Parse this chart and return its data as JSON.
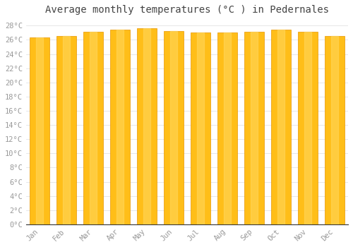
{
  "title": "Average monthly temperatures (°C ) in Pedernales",
  "months": [
    "Jan",
    "Feb",
    "Mar",
    "Apr",
    "May",
    "Jun",
    "Jul",
    "Aug",
    "Sep",
    "Oct",
    "Nov",
    "Dec"
  ],
  "temperatures": [
    26.3,
    26.5,
    27.1,
    27.4,
    27.6,
    27.2,
    27.0,
    27.0,
    27.1,
    27.4,
    27.1,
    26.5
  ],
  "bar_color_main": "#FFBE18",
  "bar_color_edge": "#E89500",
  "background_color": "#FFFFFF",
  "plot_bg_color": "#FFFFFF",
  "ylim": [
    0,
    29
  ],
  "yticks": [
    0,
    2,
    4,
    6,
    8,
    10,
    12,
    14,
    16,
    18,
    20,
    22,
    24,
    26,
    28
  ],
  "ytick_labels": [
    "0°C",
    "2°C",
    "4°C",
    "6°C",
    "8°C",
    "10°C",
    "12°C",
    "14°C",
    "16°C",
    "18°C",
    "20°C",
    "22°C",
    "24°C",
    "26°C",
    "28°C"
  ],
  "title_fontsize": 10,
  "tick_fontsize": 7.5,
  "grid_color": "#DDDDDD",
  "font_family": "monospace",
  "tick_color": "#999999",
  "spine_color": "#333333"
}
